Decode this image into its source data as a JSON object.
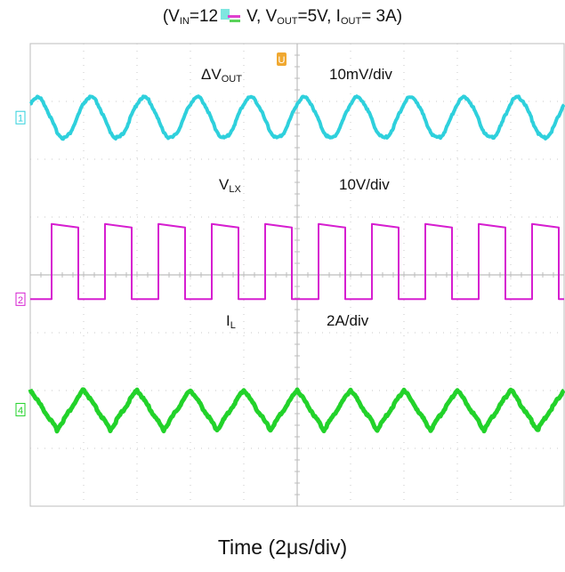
{
  "title": {
    "parts": [
      {
        "text": "(V",
        "sub": "IN",
        "after": "=12"
      },
      {
        "text": "V, V",
        "sub": "OUT",
        "after": "=5V, I"
      },
      {
        "text": "",
        "sub": "OUT",
        "after": "= 3A)"
      }
    ]
  },
  "chart_data": {
    "type": "line",
    "title": "",
    "xlabel": "Time (2μs/div)",
    "ylabel": "",
    "grid": true,
    "x_divisions": 10,
    "y_divisions": 8,
    "x_unit": "μs",
    "x_per_div": 2,
    "xlim": [
      0,
      20
    ],
    "series": [
      {
        "name": "ΔV",
        "name_sub": "OUT",
        "scale": "10mV/div",
        "channel": "1",
        "color": "#2ed0dc",
        "waveform": "sine",
        "period": 2.0,
        "amplitude_div": 0.35
      },
      {
        "name": "V",
        "name_sub": "LX",
        "scale": "10V/div",
        "channel": "2",
        "color": "#d61ed0",
        "waveform": "pulse",
        "period": 2.0,
        "duty": 0.5,
        "amplitude_div": 1.3
      },
      {
        "name": "I",
        "name_sub": "L",
        "scale": "2A/div",
        "channel": "4",
        "color": "#22d22a",
        "waveform": "triangle",
        "period": 2.0,
        "amplitude_div": 0.35
      }
    ]
  }
}
